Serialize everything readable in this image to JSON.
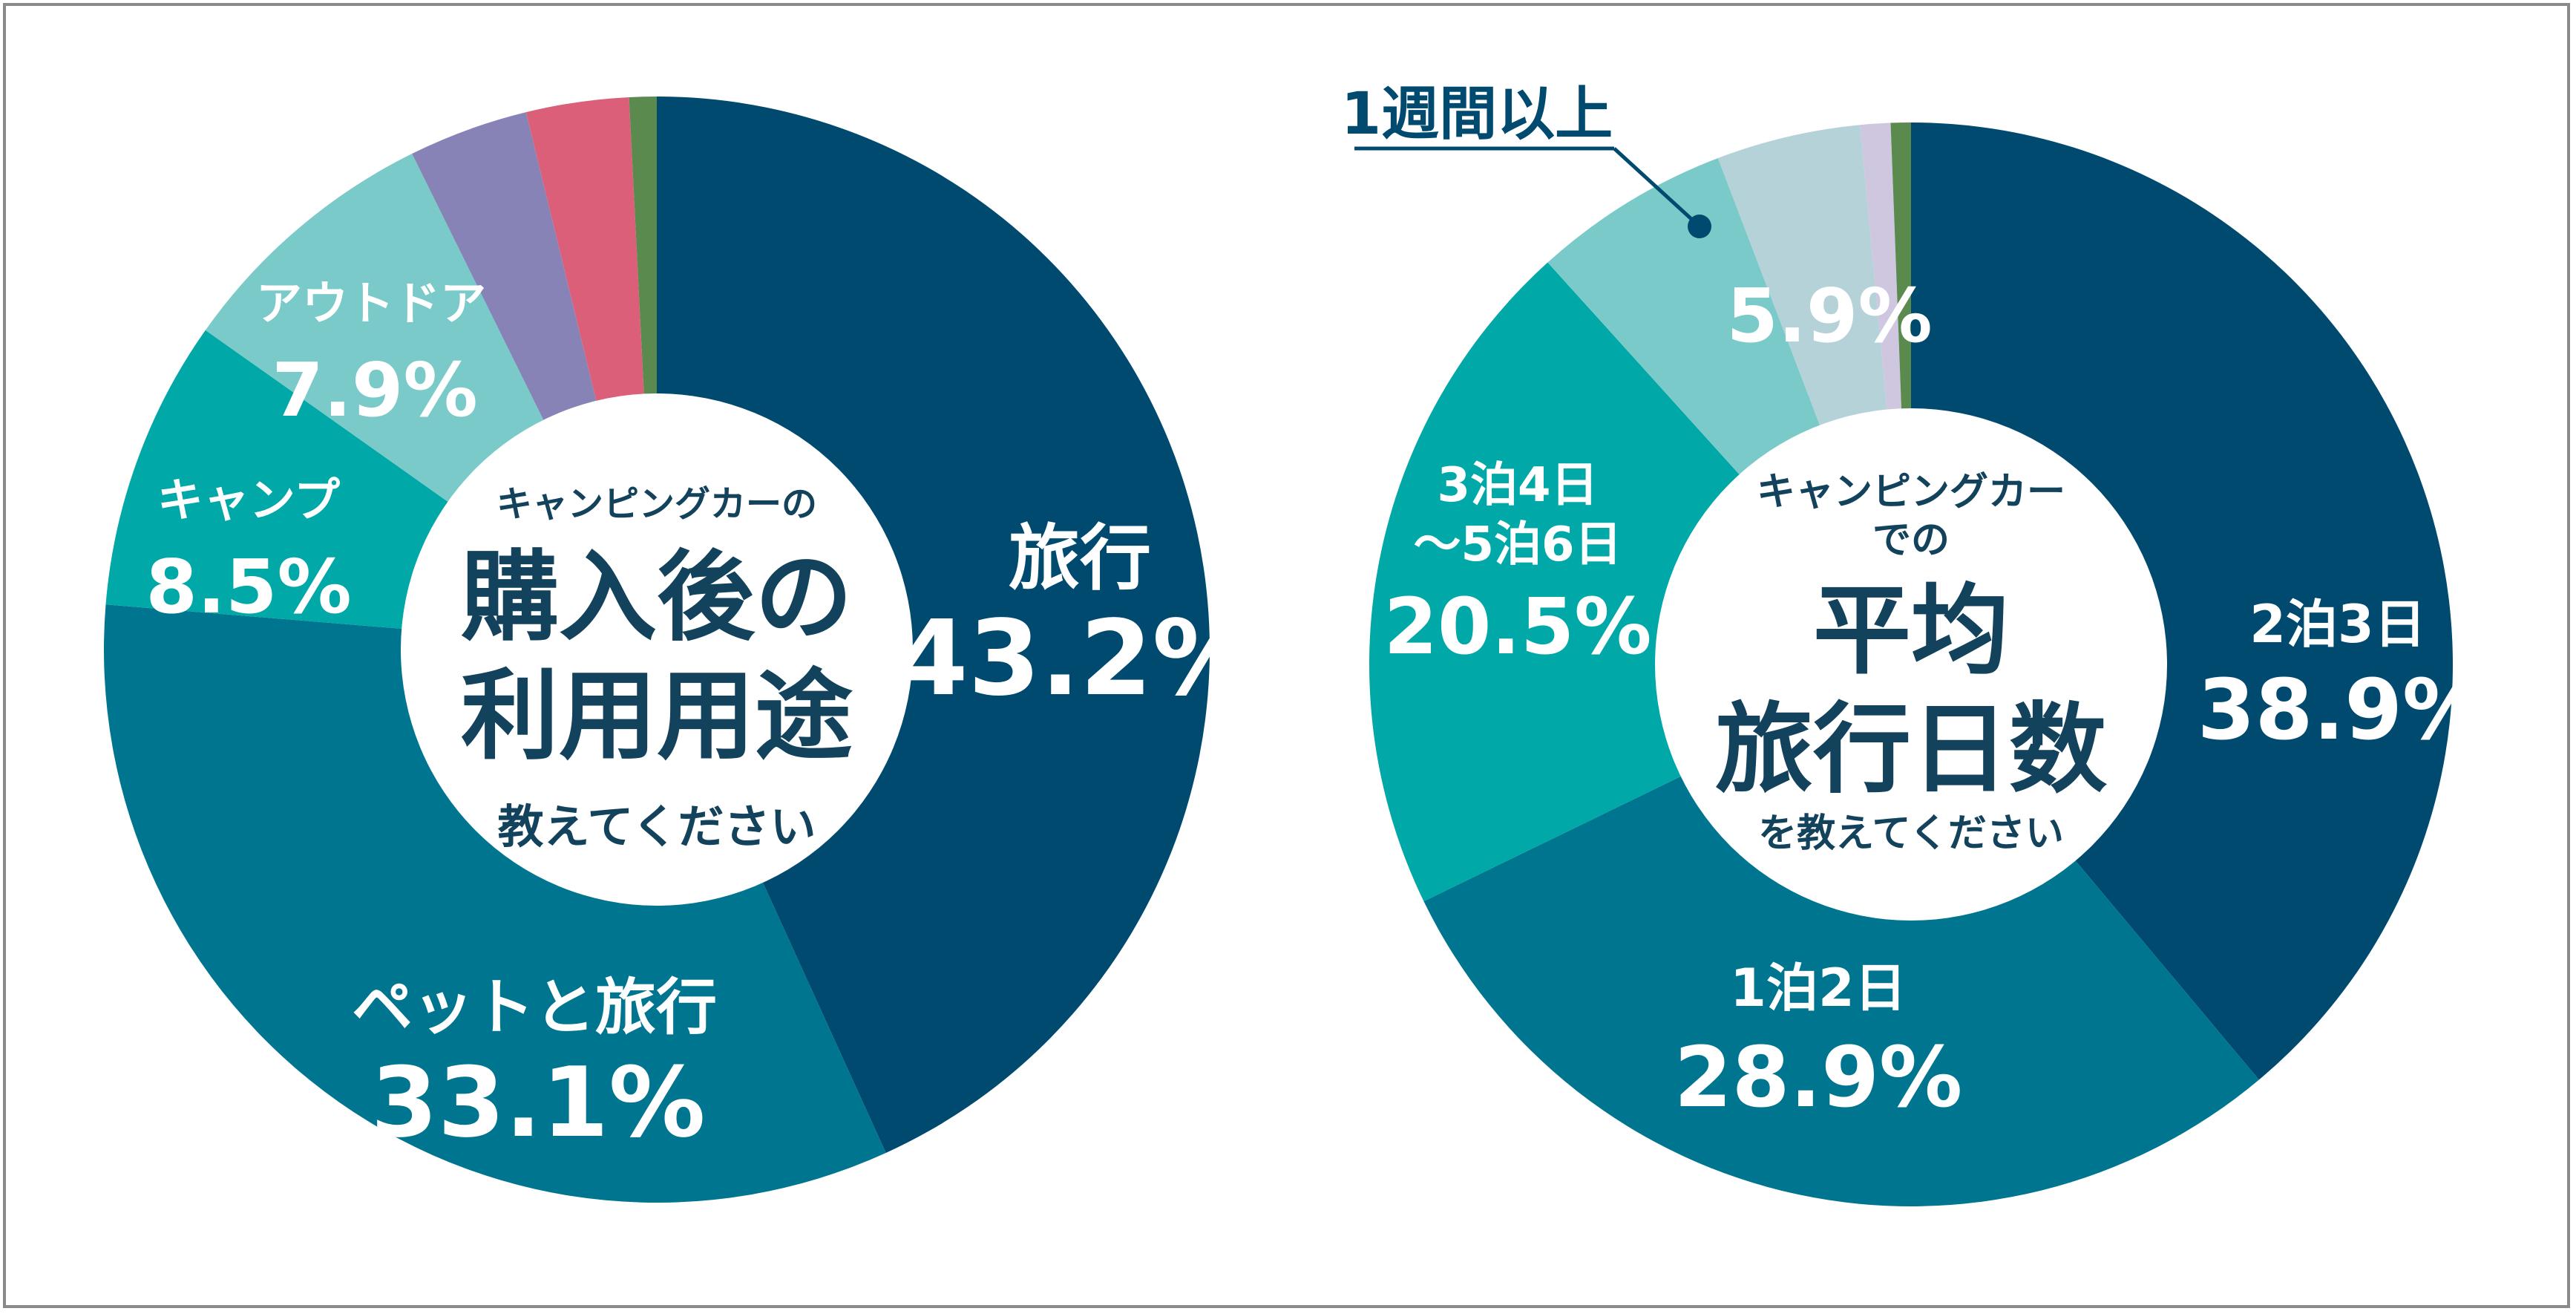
{
  "colors": {
    "navy": "#004a70",
    "teal": "#00758f",
    "green_teal": "#00a8a7",
    "light_teal": "#7acac9",
    "lavender": "#8783b7",
    "pink": "#dc5f79",
    "green": "#5b8a4f",
    "pale_blue": "#b4d2d8",
    "pale_lavender": "#cfc7df",
    "center_text": "#13425c",
    "border": "#8a8a8a"
  },
  "chart_data": [
    {
      "type": "pie",
      "center_title_small": "キャンピングカーの",
      "center_title_line1": "購入後の",
      "center_title_line2": "利用用途",
      "center_title_sub": "教えてください",
      "slices": [
        {
          "label": "旅行",
          "value": 43.2,
          "value_text": "43.2%",
          "color": "#004a70"
        },
        {
          "label": "ペットと旅行",
          "value": 33.1,
          "value_text": "33.1%",
          "color": "#00758f"
        },
        {
          "label": "キャンプ",
          "value": 8.5,
          "value_text": "8.5%",
          "color": "#00a8a7"
        },
        {
          "label": "アウトドア",
          "value": 7.9,
          "value_text": "7.9%",
          "color": "#7acac9"
        },
        {
          "label": "",
          "value": 3.5,
          "value_text": "",
          "color": "#8783b7"
        },
        {
          "label": "",
          "value": 3.0,
          "value_text": "",
          "color": "#dc5f79"
        },
        {
          "label": "",
          "value": 0.8,
          "value_text": "",
          "color": "#5b8a4f"
        }
      ]
    },
    {
      "type": "pie",
      "center_title_small_1": "キャンピングカー",
      "center_title_small_2": "での",
      "center_title_line1": "平均",
      "center_title_line2": "旅行日数",
      "center_title_sub": "を教えてください",
      "callout_label": "1週間以上",
      "slices": [
        {
          "label": "2泊3日",
          "value": 38.9,
          "value_text": "38.9%",
          "color": "#004a70"
        },
        {
          "label": "1泊2日",
          "value": 28.9,
          "value_text": "28.9%",
          "color": "#00758f"
        },
        {
          "label": "3泊4日〜5泊6日",
          "label_line1": "3泊4日",
          "label_line2": "〜5泊6日",
          "value": 20.5,
          "value_text": "20.5%",
          "color": "#00a8a7"
        },
        {
          "label": "1週間以上",
          "value": 5.9,
          "value_text": "5.9%",
          "color": "#7acac9"
        },
        {
          "label": "",
          "value": 4.3,
          "value_text": "",
          "color": "#b4d2d8"
        },
        {
          "label": "",
          "value": 0.9,
          "value_text": "",
          "color": "#cfc7df"
        },
        {
          "label": "",
          "value": 0.6,
          "value_text": "",
          "color": "#5b8a4f"
        }
      ]
    }
  ]
}
